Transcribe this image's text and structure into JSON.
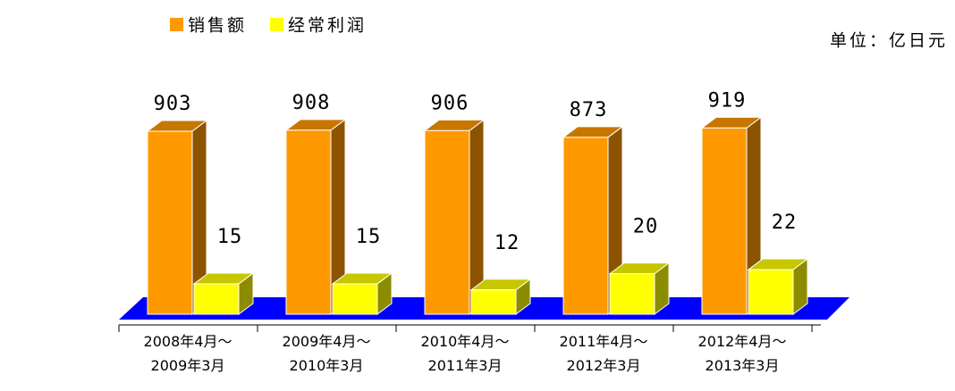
{
  "chart_data": {
    "type": "bar3d",
    "annotation": "单位：亿日元",
    "categories": [
      "2008年4月～\n2009年3月",
      "2009年4月～\n2010年3月",
      "2010年4月～\n2011年3月",
      "2011年4月～\n2012年3月",
      "2012年4月～\n2013年3月"
    ],
    "series": [
      {
        "name": "销售额",
        "color": "#FF9900",
        "values": [
          903,
          908,
          906,
          873,
          919
        ]
      },
      {
        "name": "经常利润",
        "color": "#FFFF00",
        "values": [
          15,
          15,
          12,
          20,
          22
        ],
        "axis": "y2"
      }
    ],
    "ylim": [
      0,
      1000
    ],
    "y2lim": [
      0,
      100
    ],
    "floor_color": "#0000FF"
  }
}
